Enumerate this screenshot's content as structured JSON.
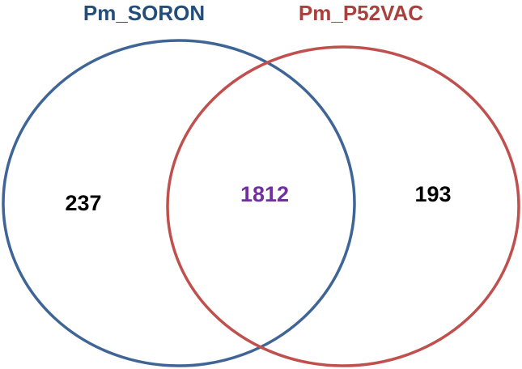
{
  "sets": [
    {
      "label": "Pm_SORON",
      "only": 237
    },
    {
      "label": "Pm_P52VAC",
      "only": 193
    }
  ],
  "intersection": 1812
}
